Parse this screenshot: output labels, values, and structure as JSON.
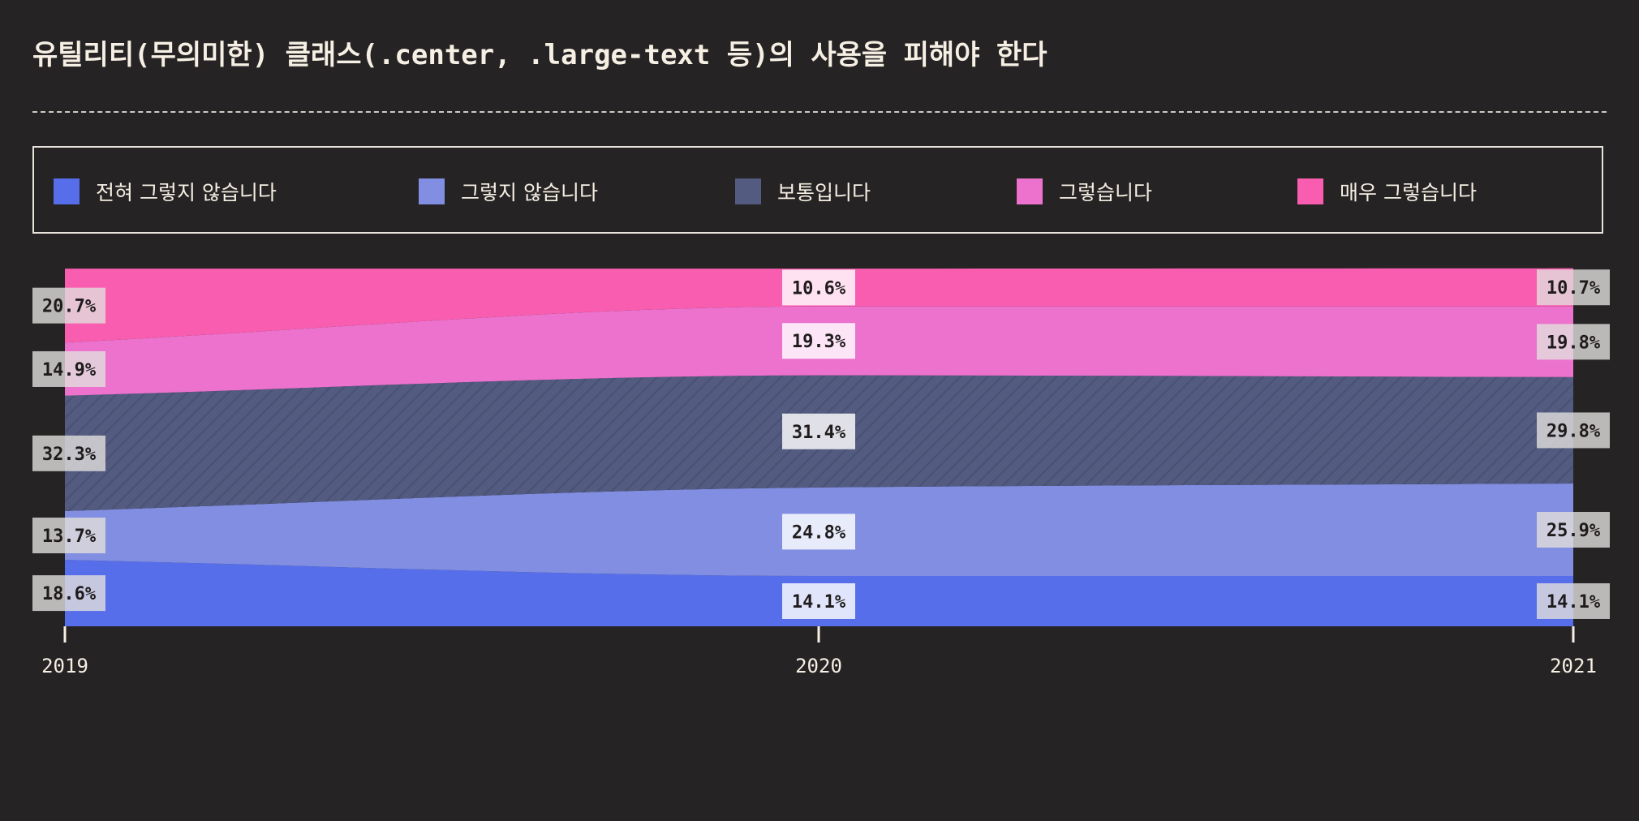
{
  "chart_data": {
    "type": "area",
    "title": "유틸리티(무의미한) 클래스(.center, .large-text 등)의 사용을 피해야 한다",
    "x": [
      "2019",
      "2020",
      "2021"
    ],
    "ylim": [
      0,
      100
    ],
    "stacked": true,
    "normalized": true,
    "legend_position": "top",
    "series": [
      {
        "name": "전혀 그렇지 않습니다",
        "values": [
          18.6,
          14.1,
          14.1
        ],
        "color": "#566eea"
      },
      {
        "name": "그렇지 않습니다",
        "values": [
          13.7,
          24.8,
          25.9
        ],
        "color": "#818ee2"
      },
      {
        "name": "보통입니다",
        "values": [
          32.3,
          31.4,
          29.8
        ],
        "color": "#535b80"
      },
      {
        "name": "그렇습니다",
        "values": [
          14.9,
          19.3,
          19.8
        ],
        "color": "#ec72cd"
      },
      {
        "name": "매우 그렇습니다",
        "values": [
          20.7,
          10.6,
          10.7
        ],
        "color": "#f95daf"
      }
    ],
    "labels": [
      [
        "18.6%",
        "14.1%",
        "14.1%"
      ],
      [
        "13.7%",
        "24.8%",
        "25.9%"
      ],
      [
        "32.3%",
        "31.4%",
        "29.8%"
      ],
      [
        "14.9%",
        "19.3%",
        "19.8%"
      ],
      [
        "20.7%",
        "10.6%",
        "10.7%"
      ]
    ]
  }
}
